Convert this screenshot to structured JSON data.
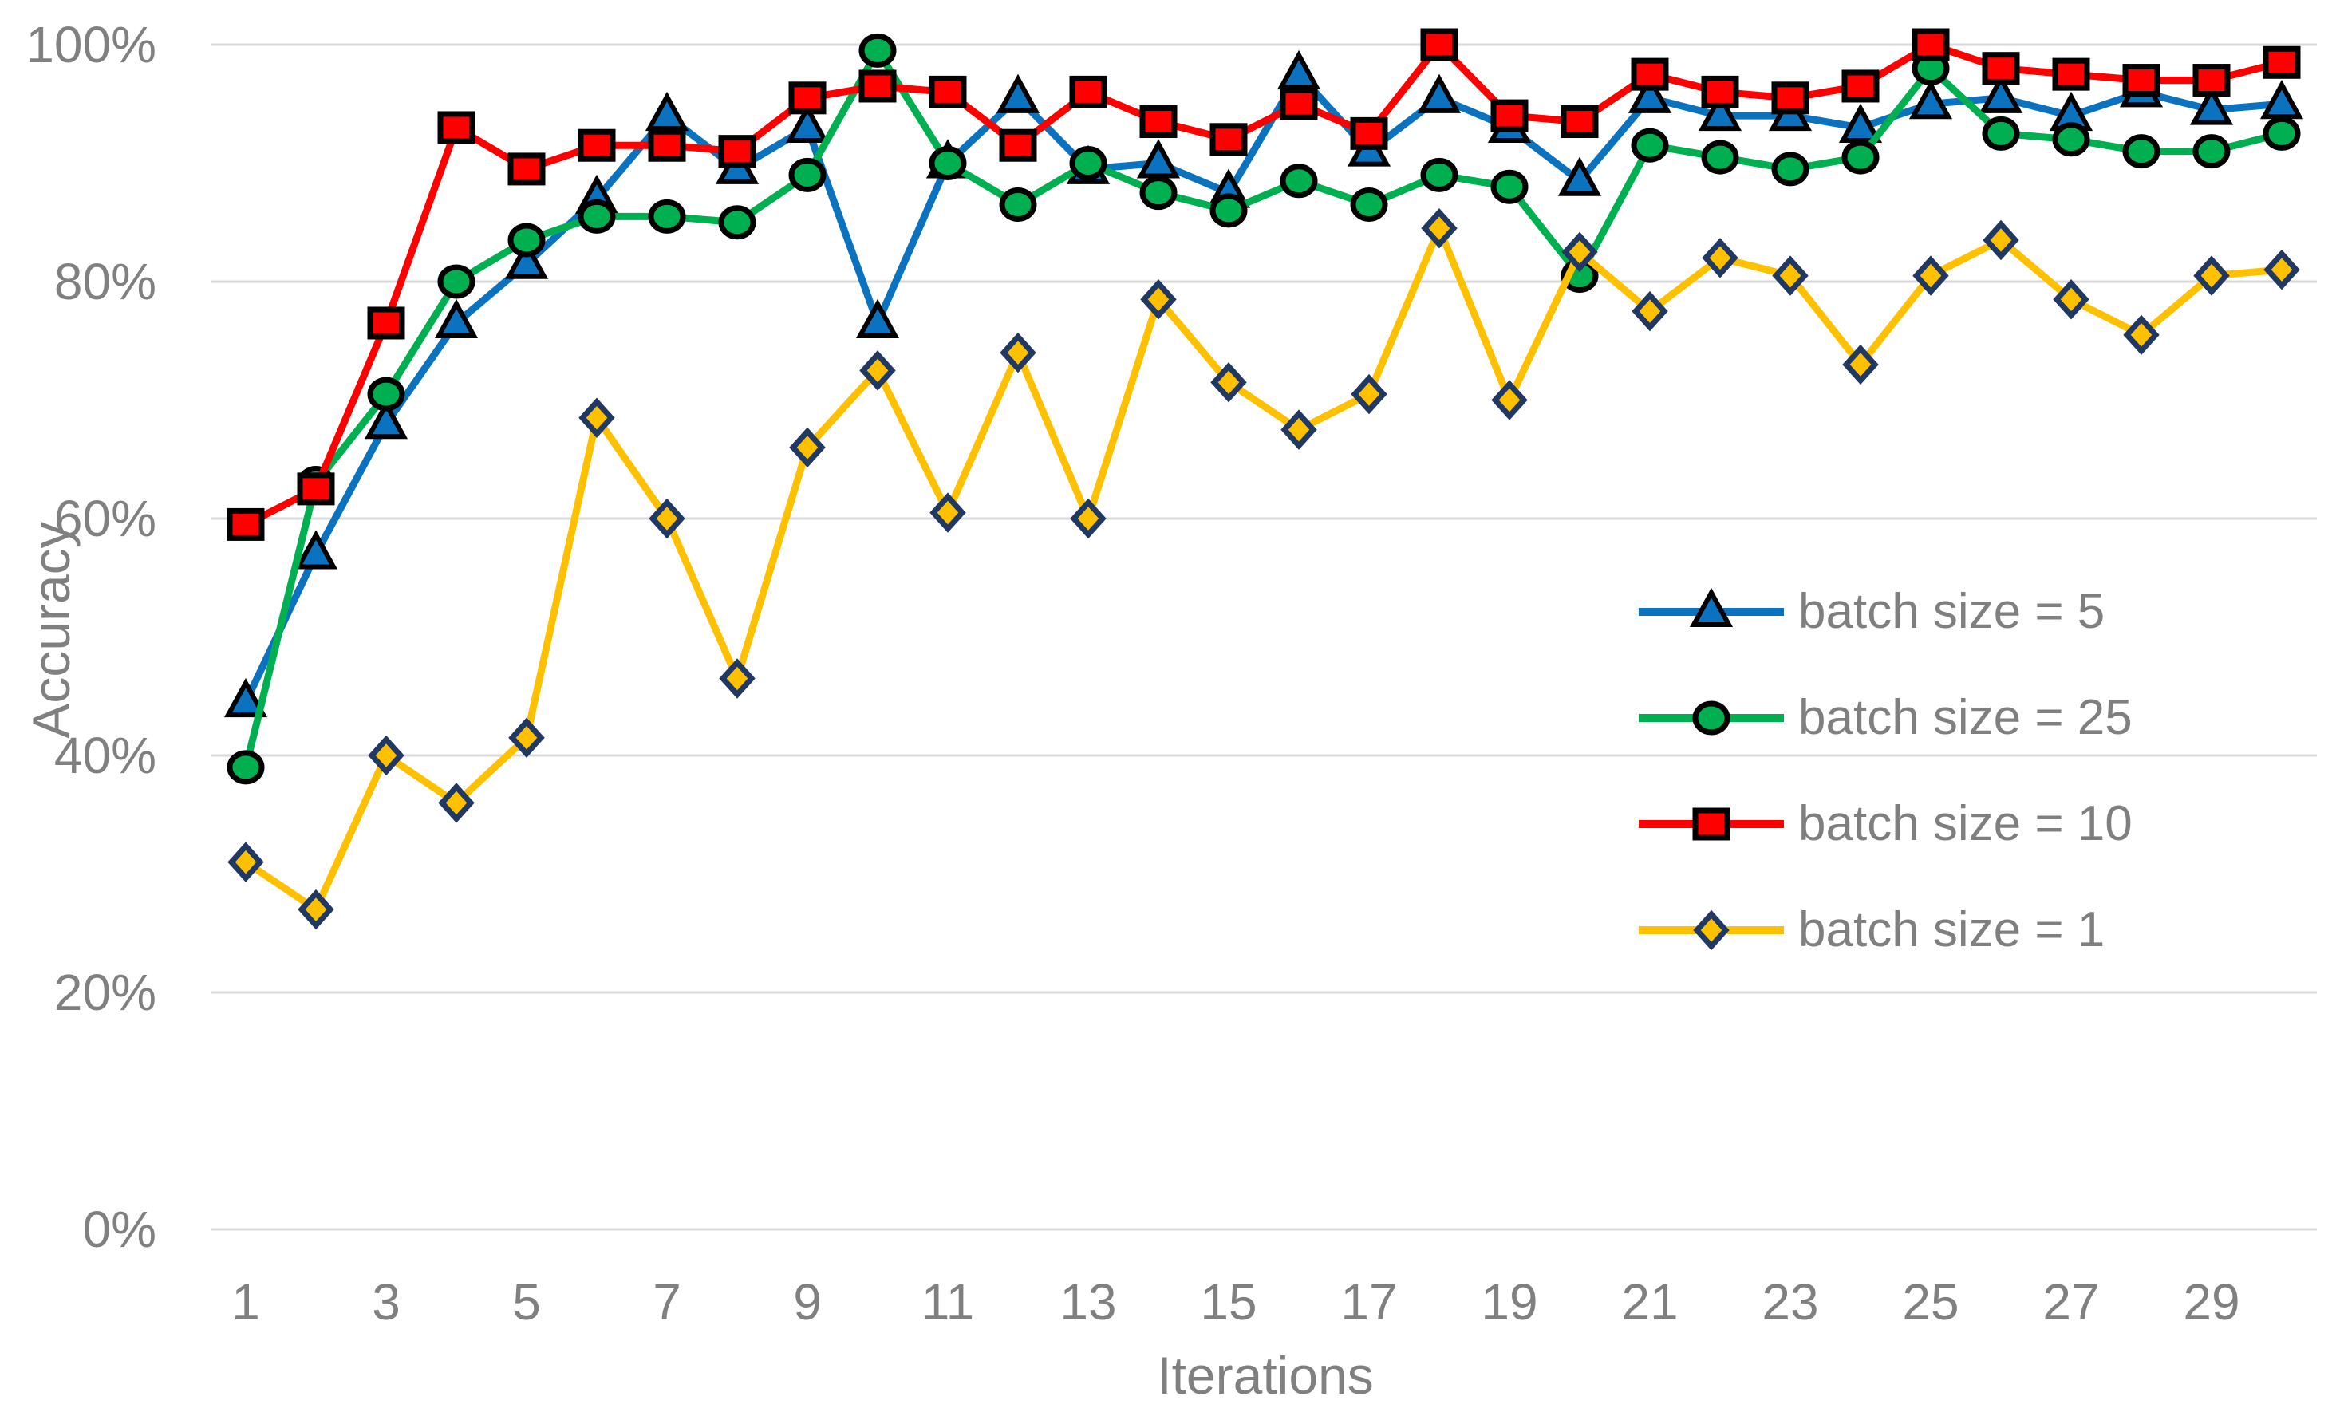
{
  "chart_data": {
    "type": "line",
    "title": "",
    "xlabel": "Iterations",
    "ylabel": "Accuracy",
    "x": [
      1,
      2,
      3,
      4,
      5,
      6,
      7,
      8,
      9,
      10,
      11,
      12,
      13,
      14,
      15,
      16,
      17,
      18,
      19,
      20,
      21,
      22,
      23,
      24,
      25,
      26,
      27,
      28,
      29,
      30
    ],
    "xticks": [
      1,
      3,
      5,
      7,
      9,
      11,
      13,
      15,
      17,
      19,
      21,
      23,
      25,
      27,
      29
    ],
    "yticks": [
      "0%",
      "20%",
      "40%",
      "60%",
      "80%",
      "100%"
    ],
    "ylim": [
      0,
      100
    ],
    "grid": true,
    "legend_position": "middle-right",
    "series": [
      {
        "name": "batch size = 5",
        "color": "#0B72C0",
        "marker": "triangle",
        "marker_outline": "#000000",
        "values": [
          44.5,
          57,
          68,
          76.5,
          81.5,
          87,
          94,
          89.5,
          93,
          76.5,
          90,
          95.5,
          89.5,
          90,
          87.5,
          97.5,
          91,
          95.5,
          93,
          88.5,
          95.5,
          94,
          94,
          93,
          95,
          95.5,
          94,
          96,
          94.5,
          95
        ]
      },
      {
        "name": "batch size = 25",
        "color": "#00B050",
        "marker": "circle",
        "marker_outline": "#000000",
        "values": [
          39,
          63,
          70.5,
          80,
          83.5,
          85.5,
          85.5,
          85,
          89,
          99.5,
          90,
          86.5,
          90,
          87.5,
          86,
          88.5,
          86.5,
          89,
          88,
          80.5,
          91.5,
          90.5,
          89.5,
          90.5,
          98,
          92.5,
          92,
          91,
          91,
          92.5
        ]
      },
      {
        "name": "batch size = 10",
        "color": "#FF0000",
        "marker": "square",
        "marker_outline": "#000000",
        "values": [
          59.5,
          62.5,
          76.5,
          93,
          89.5,
          91.5,
          91.5,
          91,
          95.5,
          96.5,
          96,
          91.5,
          96,
          93.5,
          92,
          95,
          92.5,
          100,
          94,
          93.5,
          97.5,
          96,
          95.5,
          96.5,
          100,
          98,
          97.5,
          97,
          97,
          98.5
        ]
      },
      {
        "name": "batch size = 1",
        "color": "#FFC000",
        "marker": "diamond",
        "marker_outline": "#1F3864",
        "values": [
          31,
          27,
          40,
          36,
          41.5,
          68.5,
          60,
          46.5,
          66,
          72.5,
          60.5,
          74,
          60,
          78.5,
          71.5,
          67.5,
          70.5,
          84.5,
          70,
          82.5,
          77.5,
          82,
          80.5,
          73,
          80.5,
          83.5,
          78.5,
          75.5,
          80.5,
          81
        ]
      }
    ]
  },
  "colors": {
    "grid": "#D9D9D9",
    "axis_text": "#808080",
    "legend_text": "#7F7F7F",
    "background": "#FFFFFF"
  }
}
